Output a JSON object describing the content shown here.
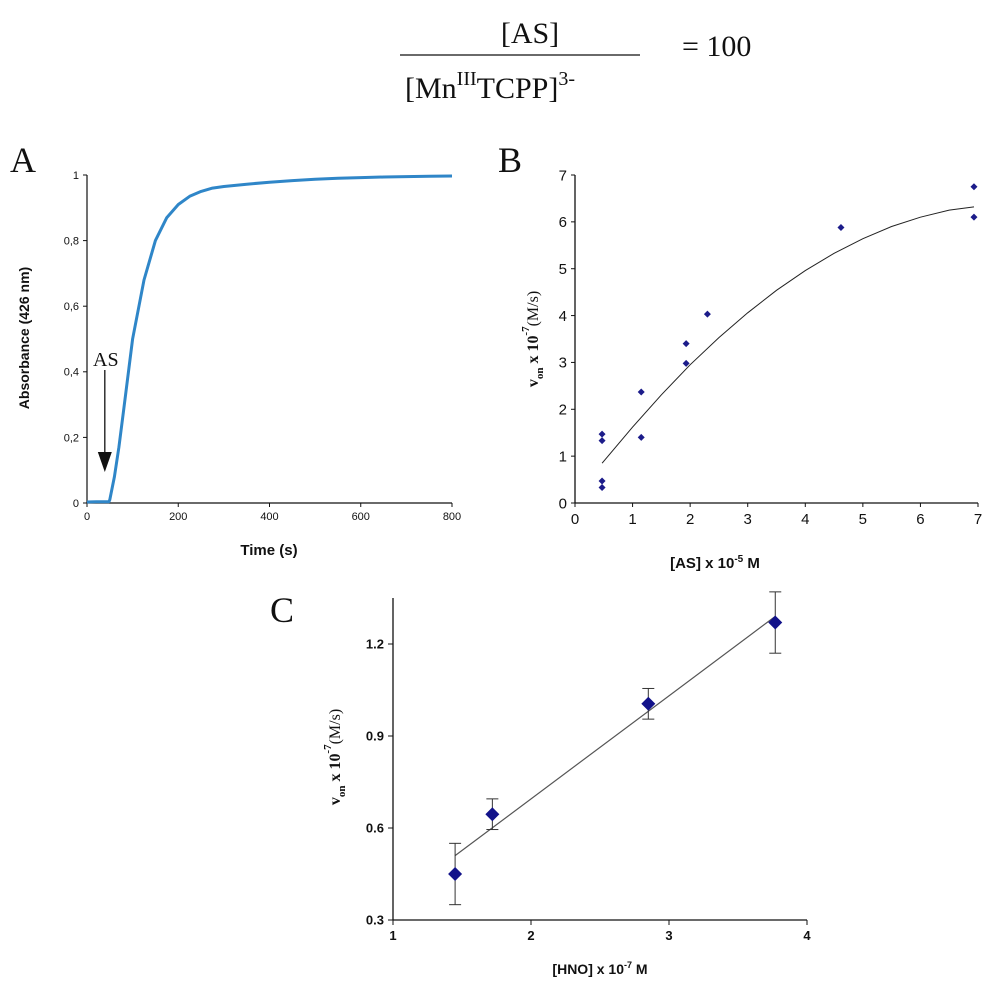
{
  "equation": {
    "numerator": "[AS]",
    "denominator_main": "[Mn",
    "denominator_sup": "III",
    "denominator_rest": "TCPP]",
    "denominator_charge": "3-",
    "equals": "= 100"
  },
  "chart_data": [
    {
      "panel": "A",
      "type": "line",
      "title": "",
      "xlabel": "Time (s)",
      "ylabel": "Absorbance (426 nm)",
      "xlim": [
        0,
        800
      ],
      "ylim": [
        0,
        1
      ],
      "x_ticks": [
        "0",
        "200",
        "400",
        "600",
        "800"
      ],
      "y_ticks": [
        "0",
        "0,2",
        "0,4",
        "0,6",
        "0,8",
        "1"
      ],
      "grid": false,
      "series": [
        {
          "color": "#2f86c8",
          "x": [
            0,
            20,
            40,
            48,
            50,
            60,
            70,
            80,
            100,
            125,
            150,
            175,
            200,
            225,
            250,
            275,
            300,
            350,
            400,
            450,
            500,
            550,
            600,
            650,
            700,
            750,
            800
          ],
          "y": [
            0.003,
            0.004,
            0.004,
            0.004,
            0.01,
            0.08,
            0.17,
            0.28,
            0.5,
            0.68,
            0.8,
            0.87,
            0.91,
            0.935,
            0.95,
            0.96,
            0.965,
            0.972,
            0.978,
            0.983,
            0.987,
            0.99,
            0.992,
            0.994,
            0.995,
            0.996,
            0.997
          ]
        }
      ],
      "annotation": {
        "text": "AS",
        "x": 50,
        "y_from": 0.4,
        "y_to": 0.02
      }
    },
    {
      "panel": "B",
      "type": "scatter",
      "title": "",
      "xlabel": "[AS] x 10",
      "xlabel_sup": "-5",
      "xlabel_tail": " M",
      "ylabel_main": "v",
      "ylabel_sub": "on",
      "ylabel_mid": " x 10",
      "ylabel_sup": "-7",
      "ylabel_tail": "(M/s)",
      "xlim": [
        0,
        7
      ],
      "ylim": [
        0,
        7
      ],
      "x_ticks": [
        "0",
        "1",
        "2",
        "3",
        "4",
        "5",
        "6",
        "7"
      ],
      "y_ticks": [
        "0",
        "1",
        "2",
        "3",
        "4",
        "5",
        "6",
        "7"
      ],
      "grid": false,
      "points": [
        {
          "x": 0.47,
          "y": 1.47
        },
        {
          "x": 0.47,
          "y": 1.33
        },
        {
          "x": 0.47,
          "y": 0.47
        },
        {
          "x": 0.47,
          "y": 0.33
        },
        {
          "x": 1.15,
          "y": 2.37
        },
        {
          "x": 1.15,
          "y": 1.4
        },
        {
          "x": 1.93,
          "y": 3.4
        },
        {
          "x": 1.93,
          "y": 2.98
        },
        {
          "x": 2.3,
          "y": 4.03
        },
        {
          "x": 4.62,
          "y": 5.88
        },
        {
          "x": 6.93,
          "y": 6.75
        },
        {
          "x": 6.93,
          "y": 6.1
        }
      ],
      "marker_color": "#1c1c8a",
      "trend": {
        "type": "polynomial",
        "x": [
          0.47,
          1.0,
          1.5,
          2.0,
          2.5,
          3.0,
          3.5,
          4.0,
          4.5,
          5.0,
          5.5,
          6.0,
          6.5,
          6.93
        ],
        "y": [
          0.85,
          1.62,
          2.31,
          2.95,
          3.53,
          4.06,
          4.54,
          4.96,
          5.33,
          5.64,
          5.9,
          6.1,
          6.25,
          6.32
        ]
      }
    },
    {
      "panel": "C",
      "type": "scatter",
      "title": "",
      "xlabel": "[HNO] x 10",
      "xlabel_sup": "-7",
      "xlabel_tail": " M",
      "ylabel_main": "v",
      "ylabel_sub": "on",
      "ylabel_mid": " x 10",
      "ylabel_sup": "-7",
      "ylabel_tail": "(M/s)",
      "xlim": [
        1,
        4
      ],
      "ylim": [
        0.3,
        1.35
      ],
      "x_ticks": [
        "1",
        "2",
        "3",
        "4"
      ],
      "y_ticks": [
        "0.3",
        "0.6",
        "0.9",
        "1.2"
      ],
      "grid": false,
      "points": [
        {
          "x": 1.45,
          "y": 0.45,
          "err": 0.1
        },
        {
          "x": 1.72,
          "y": 0.645,
          "err": 0.05
        },
        {
          "x": 2.85,
          "y": 1.005,
          "err": 0.05
        },
        {
          "x": 3.77,
          "y": 1.27,
          "err": 0.1
        }
      ],
      "marker_color": "#12128a",
      "trend": {
        "type": "linear",
        "x": [
          1.45,
          3.77
        ],
        "y": [
          0.51,
          1.29
        ]
      }
    }
  ],
  "panel_labels": {
    "a": "A",
    "b": "B",
    "c": "C"
  }
}
